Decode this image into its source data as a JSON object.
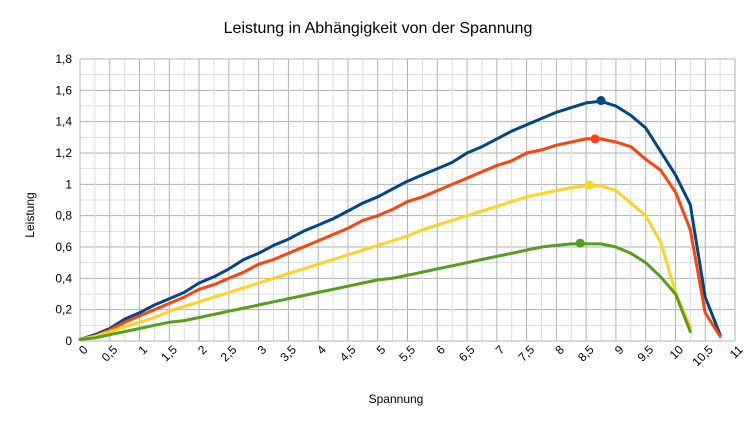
{
  "chart_data": {
    "type": "line",
    "title": "Leistung in Abhängigkeit von der Spannung",
    "xlabel": "Spannung",
    "ylabel": "Leistung",
    "xlim": [
      0,
      11
    ],
    "ylim": [
      0,
      1.8
    ],
    "x_ticks": [
      "0",
      "0,5",
      "1",
      "1,5",
      "2",
      "2,5",
      "3",
      "3,5",
      "4",
      "4,5",
      "5",
      "5,5",
      "6",
      "6,5",
      "7",
      "7,5",
      "8",
      "8,5",
      "9",
      "9,5",
      "10",
      "10,5",
      "11"
    ],
    "y_ticks": [
      "0",
      "0,2",
      "0,4",
      "0,6",
      "0,8",
      "1",
      "1,2",
      "1,4",
      "1,6",
      "1,8"
    ],
    "grid": true,
    "legend": "none",
    "series": [
      {
        "color": "#004586",
        "points": [
          [
            0,
            0.01
          ],
          [
            0.25,
            0.04
          ],
          [
            0.5,
            0.08
          ],
          [
            0.75,
            0.14
          ],
          [
            1,
            0.18
          ],
          [
            1.25,
            0.23
          ],
          [
            1.5,
            0.27
          ],
          [
            1.75,
            0.31
          ],
          [
            2,
            0.37
          ],
          [
            2.25,
            0.41
          ],
          [
            2.5,
            0.46
          ],
          [
            2.75,
            0.52
          ],
          [
            3,
            0.56
          ],
          [
            3.25,
            0.61
          ],
          [
            3.5,
            0.65
          ],
          [
            3.75,
            0.7
          ],
          [
            4,
            0.74
          ],
          [
            4.25,
            0.78
          ],
          [
            4.5,
            0.83
          ],
          [
            4.75,
            0.88
          ],
          [
            5,
            0.92
          ],
          [
            5.25,
            0.97
          ],
          [
            5.5,
            1.02
          ],
          [
            5.75,
            1.06
          ],
          [
            6,
            1.1
          ],
          [
            6.25,
            1.14
          ],
          [
            6.5,
            1.2
          ],
          [
            6.75,
            1.24
          ],
          [
            7,
            1.29
          ],
          [
            7.25,
            1.34
          ],
          [
            7.5,
            1.38
          ],
          [
            7.75,
            1.42
          ],
          [
            8,
            1.46
          ],
          [
            8.25,
            1.49
          ],
          [
            8.5,
            1.52
          ],
          [
            8.75,
            1.53
          ],
          [
            9,
            1.5
          ],
          [
            9.25,
            1.44
          ],
          [
            9.5,
            1.36
          ],
          [
            9.75,
            1.21
          ],
          [
            10,
            1.06
          ],
          [
            10.25,
            0.87
          ],
          [
            10.5,
            0.28
          ],
          [
            10.75,
            0.04
          ]
        ],
        "marker": [
          8.75,
          1.535
        ]
      },
      {
        "color": "#ff420e",
        "points": [
          [
            0,
            0.01
          ],
          [
            0.25,
            0.03
          ],
          [
            0.5,
            0.07
          ],
          [
            0.75,
            0.12
          ],
          [
            1,
            0.16
          ],
          [
            1.25,
            0.2
          ],
          [
            1.5,
            0.24
          ],
          [
            1.75,
            0.28
          ],
          [
            2,
            0.33
          ],
          [
            2.25,
            0.36
          ],
          [
            2.5,
            0.4
          ],
          [
            2.75,
            0.44
          ],
          [
            3,
            0.49
          ],
          [
            3.25,
            0.52
          ],
          [
            3.5,
            0.56
          ],
          [
            3.75,
            0.6
          ],
          [
            4,
            0.64
          ],
          [
            4.25,
            0.68
          ],
          [
            4.5,
            0.72
          ],
          [
            4.75,
            0.77
          ],
          [
            5,
            0.8
          ],
          [
            5.25,
            0.84
          ],
          [
            5.5,
            0.89
          ],
          [
            5.75,
            0.92
          ],
          [
            6,
            0.96
          ],
          [
            6.25,
            1.0
          ],
          [
            6.5,
            1.04
          ],
          [
            6.75,
            1.08
          ],
          [
            7,
            1.12
          ],
          [
            7.25,
            1.15
          ],
          [
            7.5,
            1.2
          ],
          [
            7.75,
            1.22
          ],
          [
            8,
            1.25
          ],
          [
            8.25,
            1.27
          ],
          [
            8.5,
            1.29
          ],
          [
            8.75,
            1.29
          ],
          [
            9,
            1.27
          ],
          [
            9.25,
            1.24
          ],
          [
            9.5,
            1.16
          ],
          [
            9.75,
            1.09
          ],
          [
            10,
            0.95
          ],
          [
            10.25,
            0.71
          ],
          [
            10.5,
            0.18
          ],
          [
            10.75,
            0.03
          ]
        ],
        "marker": [
          8.65,
          1.29
        ]
      },
      {
        "color": "#ffd320",
        "points": [
          [
            0,
            0.01
          ],
          [
            0.25,
            0.03
          ],
          [
            0.5,
            0.06
          ],
          [
            0.75,
            0.09
          ],
          [
            1,
            0.12
          ],
          [
            1.25,
            0.15
          ],
          [
            1.5,
            0.19
          ],
          [
            1.75,
            0.22
          ],
          [
            2,
            0.25
          ],
          [
            2.25,
            0.28
          ],
          [
            2.5,
            0.31
          ],
          [
            2.75,
            0.34
          ],
          [
            3,
            0.37
          ],
          [
            3.25,
            0.4
          ],
          [
            3.5,
            0.43
          ],
          [
            3.75,
            0.46
          ],
          [
            4,
            0.49
          ],
          [
            4.25,
            0.52
          ],
          [
            4.5,
            0.55
          ],
          [
            4.75,
            0.58
          ],
          [
            5,
            0.61
          ],
          [
            5.25,
            0.64
          ],
          [
            5.5,
            0.67
          ],
          [
            5.75,
            0.71
          ],
          [
            6,
            0.74
          ],
          [
            6.25,
            0.77
          ],
          [
            6.5,
            0.8
          ],
          [
            6.75,
            0.83
          ],
          [
            7,
            0.86
          ],
          [
            7.25,
            0.89
          ],
          [
            7.5,
            0.92
          ],
          [
            7.75,
            0.94
          ],
          [
            8,
            0.96
          ],
          [
            8.25,
            0.98
          ],
          [
            8.5,
            0.99
          ],
          [
            8.75,
            0.99
          ],
          [
            9,
            0.96
          ],
          [
            9.25,
            0.88
          ],
          [
            9.5,
            0.8
          ],
          [
            9.75,
            0.63
          ],
          [
            10,
            0.31
          ],
          [
            10.25,
            0.09
          ]
        ],
        "marker": [
          8.55,
          0.995
        ]
      },
      {
        "color": "#579d1c",
        "points": [
          [
            0,
            0.01
          ],
          [
            0.25,
            0.02
          ],
          [
            0.5,
            0.04
          ],
          [
            0.75,
            0.06
          ],
          [
            1,
            0.08
          ],
          [
            1.25,
            0.1
          ],
          [
            1.5,
            0.12
          ],
          [
            1.75,
            0.13
          ],
          [
            2,
            0.15
          ],
          [
            2.25,
            0.17
          ],
          [
            2.5,
            0.19
          ],
          [
            2.75,
            0.21
          ],
          [
            3,
            0.23
          ],
          [
            3.25,
            0.25
          ],
          [
            3.5,
            0.27
          ],
          [
            3.75,
            0.29
          ],
          [
            4,
            0.31
          ],
          [
            4.25,
            0.33
          ],
          [
            4.5,
            0.35
          ],
          [
            4.75,
            0.37
          ],
          [
            5,
            0.39
          ],
          [
            5.25,
            0.4
          ],
          [
            5.5,
            0.42
          ],
          [
            5.75,
            0.44
          ],
          [
            6,
            0.46
          ],
          [
            6.25,
            0.48
          ],
          [
            6.5,
            0.5
          ],
          [
            6.75,
            0.52
          ],
          [
            7,
            0.54
          ],
          [
            7.25,
            0.56
          ],
          [
            7.5,
            0.58
          ],
          [
            7.75,
            0.6
          ],
          [
            8,
            0.61
          ],
          [
            8.25,
            0.62
          ],
          [
            8.5,
            0.62
          ],
          [
            8.75,
            0.62
          ],
          [
            9,
            0.6
          ],
          [
            9.25,
            0.56
          ],
          [
            9.5,
            0.5
          ],
          [
            9.75,
            0.41
          ],
          [
            10,
            0.3
          ],
          [
            10.25,
            0.06
          ]
        ],
        "marker": [
          8.4,
          0.625
        ]
      }
    ]
  }
}
